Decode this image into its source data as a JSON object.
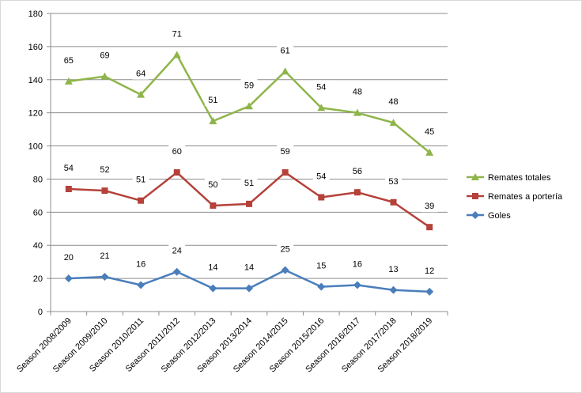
{
  "chart_data": {
    "type": "line",
    "title": "",
    "xlabel": "",
    "ylabel": "",
    "ylim": [
      0,
      180
    ],
    "y_ticks": [
      0,
      20,
      40,
      60,
      80,
      100,
      120,
      140,
      160,
      180
    ],
    "grid": true,
    "legend_position": "right",
    "categories": [
      "Season 2008/2009",
      "Season 2009/2010",
      "Season 2010/2011",
      "Season 2011/2012",
      "Season 2012/2013",
      "Season 2013/2014",
      "Season 2014/2015",
      "Season 2015/2016",
      "Season 2016/2017",
      "Season 2017/2018",
      "Season 2018/2019"
    ],
    "series": [
      {
        "name": "Remates totales",
        "color": "#8FB54A",
        "marker": "triangle",
        "values": [
          139,
          142,
          131,
          155,
          115,
          124,
          145,
          123,
          120,
          114,
          96
        ],
        "data_labels": [
          "65",
          "69",
          "64",
          "71",
          "51",
          "59",
          "61",
          "54",
          "48",
          "48",
          "45"
        ]
      },
      {
        "name": "Remates a portería",
        "color": "#B5413B",
        "marker": "square",
        "values": [
          74,
          73,
          67,
          84,
          64,
          65,
          84,
          69,
          72,
          66,
          51
        ],
        "data_labels": [
          "54",
          "52",
          "51",
          "60",
          "50",
          "51",
          "59",
          "54",
          "56",
          "53",
          "39"
        ]
      },
      {
        "name": "Goles",
        "color": "#4A7EBB",
        "marker": "diamond",
        "values": [
          20,
          21,
          16,
          24,
          14,
          14,
          25,
          15,
          16,
          13,
          12
        ],
        "data_labels": [
          "20",
          "21",
          "16",
          "24",
          "14",
          "14",
          "25",
          "15",
          "16",
          "13",
          "12"
        ]
      }
    ]
  }
}
